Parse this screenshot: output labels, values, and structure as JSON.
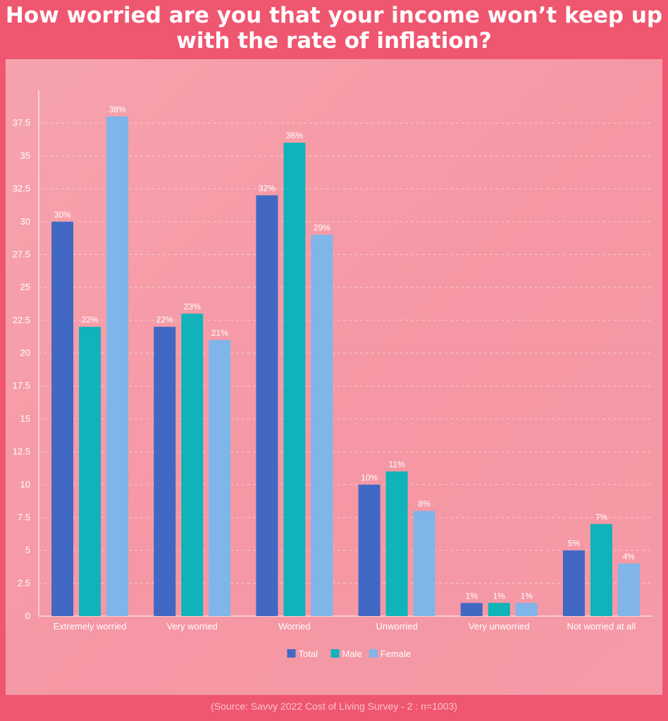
{
  "title_line1": "How worried are you that your income won’t keep up",
  "title_line2": "with the rate of inflation?",
  "source": "(Source: Savvy 2022 Cost of Living Survey - 2 : n=1003)",
  "chart_data": {
    "type": "bar",
    "categories": [
      "Extremely worried",
      "Very worried",
      "Worried",
      "Unworried",
      "Very unworried",
      "Not worried at all"
    ],
    "series": [
      {
        "name": "Total",
        "color": "#4168c2",
        "values": [
          30,
          22,
          32,
          10,
          1,
          5
        ],
        "labels": [
          "30%",
          "22%",
          "32%",
          "10%",
          "1%",
          "5%"
        ]
      },
      {
        "name": "Male",
        "color": "#10b3b9",
        "values": [
          22,
          23,
          36,
          11,
          1,
          7
        ],
        "labels": [
          "22%",
          "23%",
          "36%",
          "11%",
          "1%",
          "7%"
        ]
      },
      {
        "name": "Female",
        "color": "#7fb5e9",
        "values": [
          38,
          21,
          29,
          8,
          1,
          4
        ],
        "labels": [
          "38%",
          "21%",
          "29%",
          "8%",
          "1%",
          "4%"
        ]
      }
    ],
    "yticks": [
      "0",
      "2.5",
      "5",
      "7.5",
      "10",
      "12.5",
      "15",
      "17.5",
      "20",
      "22.5",
      "25",
      "27.5",
      "30",
      "32.5",
      "35",
      "37.5"
    ],
    "ylim": [
      0,
      40
    ],
    "grid": true,
    "legend_position": "bottom-center"
  }
}
